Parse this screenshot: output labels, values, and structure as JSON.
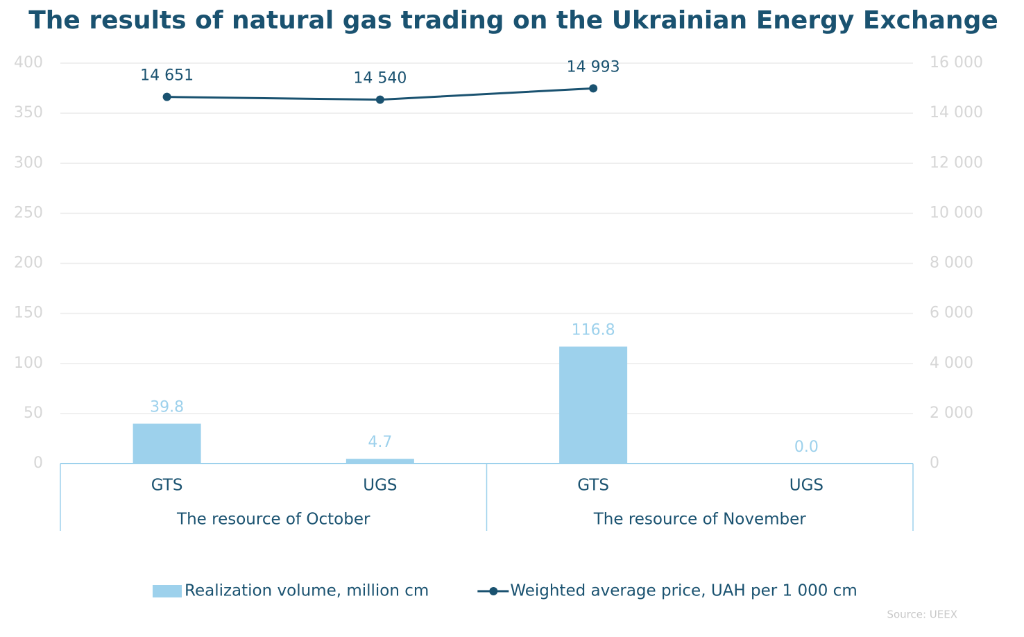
{
  "chart_data": {
    "type": "combo",
    "title": "The results of natural gas trading on the Ukrainian Energy Exchange",
    "categories": [
      "GTS",
      "UGS",
      "GTS",
      "UGS"
    ],
    "group_labels": [
      "The resource of October",
      "The resource of November"
    ],
    "series": [
      {
        "name": "Realization volume, million cm",
        "type": "bar",
        "color": "#9dd1ec",
        "values": [
          39.8,
          4.7,
          116.8,
          0.0
        ],
        "value_labels": [
          "39.8",
          "4.7",
          "116.8",
          "0.0"
        ]
      },
      {
        "name": "Weighted average price, UAH per 1 000 cm",
        "type": "line",
        "axis": "y2",
        "color": "#1a5270",
        "values": [
          14651,
          14540,
          14993,
          null
        ],
        "value_labels": [
          "14 651",
          "14 540",
          "14 993",
          null
        ]
      }
    ],
    "ylim": [
      0,
      400
    ],
    "yticks": [
      0,
      50,
      100,
      150,
      200,
      250,
      300,
      350,
      400
    ],
    "y2lim": [
      0,
      16000
    ],
    "y2ticks": [
      0,
      {
        "value": 2000,
        "label": "2 000"
      },
      {
        "value": 4000,
        "label": "4 000"
      },
      {
        "value": 6000,
        "label": "6 000"
      },
      {
        "value": 8000,
        "label": "8 000"
      },
      {
        "value": 10000,
        "label": "10 000"
      },
      {
        "value": 12000,
        "label": "12 000"
      },
      {
        "value": 14000,
        "label": "14 000"
      },
      {
        "value": 16000,
        "label": "16 000"
      }
    ],
    "grid": true,
    "legend": "bottom",
    "source": "Source: UEEX"
  }
}
